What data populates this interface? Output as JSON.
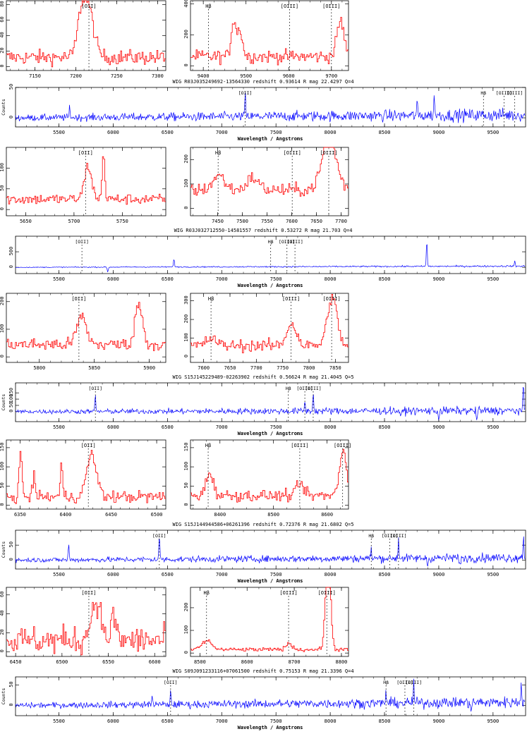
{
  "colors": {
    "zoom_line": "#ff0000",
    "full_line": "#0000ff",
    "axis": "#000000"
  },
  "chart_data": [
    {
      "type": "line",
      "title": "WIG R03J035249692-13564330 redshift 0.93614 R mag 22.4297 Q=4",
      "full": {
        "xlim": [
          5100,
          9800
        ],
        "xticks": [
          "5500",
          "6000",
          "6500",
          "7000",
          "7500",
          "8000",
          "8500",
          "9000",
          "9500"
        ],
        "ylim": [
          -15,
          50
        ],
        "yticks": [
          "0",
          "50"
        ],
        "ylabel": "Counts",
        "xlabel": "Wavelength / Angstroms",
        "lines": [
          {
            "label": "[OII]",
            "x": 7216
          },
          {
            "label": "Hβ",
            "x": 9412
          },
          {
            "label": "[OIII]",
            "x": 9602
          },
          {
            "label": "[OIII]",
            "x": 9700
          }
        ],
        "spikes": [
          {
            "x": 7216,
            "y": 40
          },
          {
            "x": 8960,
            "y": 35
          },
          {
            "x": 5600,
            "y": 20
          },
          {
            "x": 8800,
            "y": 22
          }
        ],
        "noise": 7,
        "slope": 1.2
      },
      "zooms": [
        {
          "xlim": [
            7115,
            7310
          ],
          "xticks": [
            "7150",
            "7200",
            "7250",
            "7300"
          ],
          "ylim": [
            -5,
            85
          ],
          "yticks": [
            "0",
            "20",
            "40",
            "60",
            "80"
          ],
          "lines": [
            {
              "label": "[OII]",
              "x": 7216
            }
          ],
          "noise": 9,
          "base": 12,
          "features": [
            {
              "x": 7213,
              "y": 70,
              "w": 5
            },
            {
              "x": 7205,
              "y": 25,
              "w": 3
            }
          ]
        },
        {
          "xlim": [
            9370,
            9740
          ],
          "xticks": [
            "9400",
            "9500",
            "9600",
            "9700"
          ],
          "ylim": [
            -30,
            420
          ],
          "yticks": [
            "0",
            "200",
            "400"
          ],
          "lines": [
            {
              "label": "Hβ",
              "x": 9412
            },
            {
              "label": "[OIII]",
              "x": 9602
            },
            {
              "label": "[OIII]",
              "x": 9700
            }
          ],
          "noise": 40,
          "base": 60,
          "features": [
            {
              "x": 9470,
              "y": 240,
              "w": 2
            },
            {
              "x": 9485,
              "y": 170,
              "w": 2
            },
            {
              "x": 9720,
              "y": 230,
              "w": 3
            }
          ]
        }
      ]
    },
    {
      "type": "line",
      "title": "WIG R03J032712550-14581557 redshift 0.53272 R mag 21.703 Q=4",
      "full": {
        "xlim": [
          5100,
          9800
        ],
        "xticks": [
          "5500",
          "6000",
          "6500",
          "7000",
          "7500",
          "8000",
          "8500",
          "9000",
          "9500"
        ],
        "ylim": [
          -200,
          1000
        ],
        "yticks": [
          "0",
          "500"
        ],
        "ylabel": "",
        "xlabel": "Wavelength / Angstroms",
        "lines": [
          {
            "label": "[OII]",
            "x": 5712
          },
          {
            "label": "Hβ",
            "x": 7451
          },
          {
            "label": "[OIII]",
            "x": 7601
          },
          {
            "label": "[OIII]",
            "x": 7675
          }
        ],
        "spikes": [
          {
            "x": 8890,
            "y": 900
          },
          {
            "x": 6560,
            "y": 300
          },
          {
            "x": 9700,
            "y": 150
          }
        ],
        "dips": [
          {
            "x": 5950,
            "y": -150
          }
        ],
        "noise": 18,
        "slope": 10
      },
      "zooms": [
        {
          "xlim": [
            5630,
            5795
          ],
          "xticks": [
            "5650",
            "5700",
            "5750"
          ],
          "ylim": [
            -15,
            150
          ],
          "yticks": [
            "0",
            "50",
            "100"
          ],
          "lines": [
            {
              "label": "[OII]",
              "x": 5712
            }
          ],
          "noise": 12,
          "base": 25,
          "features": [
            {
              "x": 5714,
              "y": 80,
              "w": 3
            },
            {
              "x": 5730,
              "y": 120,
              "w": 1
            }
          ]
        },
        {
          "xlim": [
            7395,
            7715
          ],
          "xticks": [
            "7450",
            "7500",
            "7550",
            "7600",
            "7650",
            "7700"
          ],
          "ylim": [
            -30,
            250
          ],
          "yticks": [
            "0",
            "100",
            "200"
          ],
          "lines": [
            {
              "label": "Hβ",
              "x": 7451
            },
            {
              "label": "[OIII]",
              "x": 7601
            },
            {
              "label": "[OIII]",
              "x": 7675
            }
          ],
          "noise": 25,
          "base": 75,
          "features": [
            {
              "x": 7675,
              "y": 210,
              "w": 6
            },
            {
              "x": 7451,
              "y": 60,
              "w": 5
            },
            {
              "x": 7520,
              "y": 50,
              "w": 5
            }
          ]
        }
      ]
    },
    {
      "type": "line",
      "title": "WIG S15J145229489-02263902 redshift 0.56624 R mag 21.4045 Q=5",
      "full": {
        "xlim": [
          5100,
          9800
        ],
        "xticks": [
          "5500",
          "6000",
          "6500",
          "7000",
          "7500",
          "8000",
          "8500",
          "9000",
          "9500"
        ],
        "ylim": [
          -80,
          230
        ],
        "yticks": [
          "0",
          "50",
          "100",
          "150"
        ],
        "ylabel": "Counts",
        "xlabel": "Wavelength / Angstroms",
        "lines": [
          {
            "label": "[OII]",
            "x": 5836
          },
          {
            "label": "Hβ",
            "x": 7614
          },
          {
            "label": "[OIII]",
            "x": 7766
          },
          {
            "label": "[OIII]",
            "x": 7843
          }
        ],
        "spikes": [
          {
            "x": 5836,
            "y": 140
          },
          {
            "x": 7843,
            "y": 150
          },
          {
            "x": 7766,
            "y": 80
          },
          {
            "x": 9780,
            "y": 200
          }
        ],
        "dips": [
          {
            "x": 8650,
            "y": -70
          },
          {
            "x": 9000,
            "y": -60
          },
          {
            "x": 9350,
            "y": -65
          }
        ],
        "noise": 22,
        "slope": 2
      },
      "zooms": [
        {
          "xlim": [
            5770,
            5915
          ],
          "xticks": [
            "5800",
            "5850",
            "5900"
          ],
          "ylim": [
            -20,
            230
          ],
          "yticks": [
            "0",
            "100",
            "200"
          ],
          "lines": [
            {
              "label": "[OII]",
              "x": 5836
            }
          ],
          "noise": 22,
          "base": 45,
          "features": [
            {
              "x": 5838,
              "y": 100,
              "w": 4
            },
            {
              "x": 5890,
              "y": 150,
              "w": 3
            }
          ]
        },
        {
          "xlim": [
            7575,
            7875
          ],
          "xticks": [
            "7600",
            "7650",
            "7700",
            "7750",
            "7800",
            "7850"
          ],
          "ylim": [
            -30,
            340
          ],
          "yticks": [
            "0",
            "100",
            "200",
            "300"
          ],
          "lines": [
            {
              "label": "Hβ",
              "x": 7614
            },
            {
              "label": "[OIII]",
              "x": 7766
            },
            {
              "label": "[OIII]",
              "x": 7843
            }
          ],
          "noise": 30,
          "base": 60,
          "features": [
            {
              "x": 7843,
              "y": 260,
              "w": 4
            },
            {
              "x": 7766,
              "y": 120,
              "w": 4
            },
            {
              "x": 7614,
              "y": 40,
              "w": 4
            }
          ]
        }
      ]
    },
    {
      "type": "line",
      "title": "WIG S15J144944586+06261396 redshift 0.72376 R mag 21.6802 Q=5",
      "full": {
        "xlim": [
          5100,
          9800
        ],
        "xticks": [
          "5500",
          "6000",
          "6500",
          "7000",
          "7500",
          "8000",
          "8500",
          "9000",
          "9500"
        ],
        "ylim": [
          -30,
          100
        ],
        "yticks": [
          "0",
          "50"
        ],
        "ylabel": "Counts",
        "xlabel": "Wavelength / Angstroms",
        "lines": [
          {
            "label": "[OII]",
            "x": 6425
          },
          {
            "label": "Hβ",
            "x": 8378
          },
          {
            "label": "[OIII]",
            "x": 8549
          },
          {
            "label": "[OIII]",
            "x": 8629
          }
        ],
        "spikes": [
          {
            "x": 6425,
            "y": 85
          },
          {
            "x": 5590,
            "y": 55
          },
          {
            "x": 8629,
            "y": 70
          },
          {
            "x": 9780,
            "y": 80
          },
          {
            "x": 8378,
            "y": 35
          }
        ],
        "dips": [
          {
            "x": 8900,
            "y": -25
          },
          {
            "x": 9200,
            "y": -25
          }
        ],
        "noise": 10,
        "slope": 2
      },
      "zooms": [
        {
          "xlim": [
            6335,
            6510
          ],
          "xticks": [
            "6350",
            "6400",
            "6450",
            "6500"
          ],
          "ylim": [
            -10,
            170
          ],
          "yticks": [
            "0",
            "50",
            "100",
            "150"
          ],
          "lines": [
            {
              "label": "[OII]",
              "x": 6425
            }
          ],
          "noise": 15,
          "base": 22,
          "features": [
            {
              "x": 6428,
              "y": 110,
              "w": 4
            },
            {
              "x": 6350,
              "y": 130,
              "w": 1
            },
            {
              "x": 6365,
              "y": 60,
              "w": 1
            },
            {
              "x": 6395,
              "y": 80,
              "w": 1
            }
          ]
        },
        {
          "xlim": [
            8345,
            8640
          ],
          "xticks": [
            "8400",
            "8500",
            "8600"
          ],
          "ylim": [
            -10,
            170
          ],
          "yticks": [
            "0",
            "50",
            "100",
            "150"
          ],
          "lines": [
            {
              "label": "Hβ",
              "x": 8378
            },
            {
              "label": "[OIII]",
              "x": 8549
            },
            {
              "label": "[OIII]",
              "x": 8629
            }
          ],
          "noise": 14,
          "base": 25,
          "features": [
            {
              "x": 8629,
              "y": 120,
              "w": 3
            },
            {
              "x": 8380,
              "y": 60,
              "w": 3
            },
            {
              "x": 8549,
              "y": 30,
              "w": 3
            }
          ]
        }
      ]
    },
    {
      "type": "line",
      "title": "WIG S09J091233116+07061500 redshift 0.75153 R mag 21.3396 Q=4",
      "full": {
        "xlim": [
          5100,
          9800
        ],
        "xticks": [
          "5500",
          "6000",
          "6500",
          "7000",
          "7500",
          "8000",
          "8500",
          "9000",
          "9500"
        ],
        "ylim": [
          -25,
          70
        ],
        "yticks": [
          "0",
          "50"
        ],
        "ylabel": "Counts",
        "xlabel": "Wavelength / Angstroms",
        "lines": [
          {
            "label": "[OII]",
            "x": 6529
          },
          {
            "label": "Hβ",
            "x": 8514
          },
          {
            "label": "[OIII]",
            "x": 8688
          },
          {
            "label": "[OIII]",
            "x": 8769
          }
        ],
        "spikes": [
          {
            "x": 8769,
            "y": 55
          },
          {
            "x": 6530,
            "y": 30
          },
          {
            "x": 6360,
            "y": 30
          },
          {
            "x": 9760,
            "y": 55
          },
          {
            "x": 8514,
            "y": 30
          }
        ],
        "dips": [
          {
            "x": 9300,
            "y": -20
          }
        ],
        "noise": 9,
        "slope": 2
      },
      "zooms": [
        {
          "xlim": [
            6440,
            6612
          ],
          "xticks": [
            "6450",
            "6500",
            "6550",
            "6600"
          ],
          "ylim": [
            -5,
            68
          ],
          "yticks": [
            "0",
            "20",
            "40",
            "60"
          ],
          "lines": [
            {
              "label": "[OII]",
              "x": 6529
            }
          ],
          "noise": 14,
          "base": 12,
          "features": [
            {
              "x": 6536,
              "y": 42,
              "w": 4
            },
            {
              "x": 6555,
              "y": 25,
              "w": 2
            }
          ]
        },
        {
          "xlim": [
            8480,
            8815
          ],
          "xticks": [
            "8500",
            "8600",
            "8700",
            "8800"
          ],
          "ylim": [
            -15,
            290
          ],
          "yticks": [
            "0",
            "100",
            "200"
          ],
          "lines": [
            {
              "label": "Hβ",
              "x": 8514
            },
            {
              "label": "[OIII]",
              "x": 8688
            },
            {
              "label": "[OIII]",
              "x": 8769
            }
          ],
          "noise": 8,
          "base": 15,
          "features": [
            {
              "x": 8769,
              "y": 220,
              "w": 2
            },
            {
              "x": 8772,
              "y": 230,
              "w": 2
            },
            {
              "x": 8514,
              "y": 40,
              "w": 4
            },
            {
              "x": 8688,
              "y": 25,
              "w": 3
            }
          ]
        }
      ]
    }
  ]
}
